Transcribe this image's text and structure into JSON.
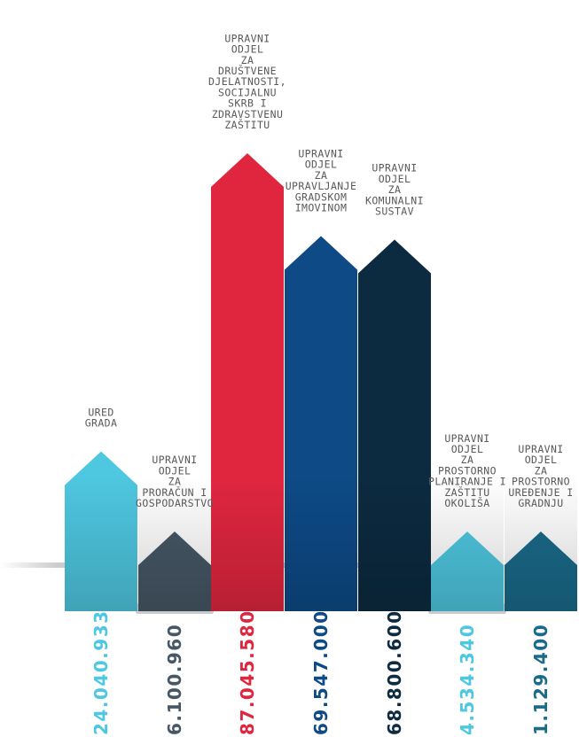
{
  "chart_data": {
    "type": "bar",
    "categories": [
      "UPRAVNI ODJEL ZA DRUŠTVENE DJELATNOSTI, SOCIJALNU SKRB I ZDRAVSTVENU ZAŠTITU",
      "UPRAVNI ODJEL ZA UPRAVLJANJE GRADSKOM IMOVINOM",
      "UPRAVNI ODJEL ZA KOMUNALNI SUSTAV",
      "URED GRADA",
      "UPRAVNI ODJEL ZA PRORAČUN I GOSPODARSTVO",
      "UPRAVNI ODJEL ZA PROSTORNO PLANIRANJE I ZAŠTITU OKOLIŠA",
      "UPRAVNI ODJEL ZA PROSTORNO UREĐENJE I GRADNJU"
    ],
    "category_lines": [
      [
        "UPRAVNI",
        "ODJEL",
        "ZA",
        "DRUŠTVENE",
        "DJELATNOSTI,",
        "SOCIJALNU",
        "SKRB I",
        "ZDRAVSTVENU",
        "ZAŠTITU"
      ],
      [
        "UPRAVNI",
        "ODJEL",
        "ZA",
        "UPRAVLJANJE",
        "GRADSKOM",
        "IMOVINOM"
      ],
      [
        "UPRAVNI",
        "ODJEL",
        "ZA",
        "KOMUNALNI",
        "SUSTAV"
      ],
      [
        "URED",
        "GRADA"
      ],
      [
        "UPRAVNI",
        "ODJEL",
        "ZA",
        "PRORAČUN I",
        "GOSPODARSTVO"
      ],
      [
        "UPRAVNI",
        "ODJEL",
        "ZA",
        "PROSTORNO",
        "PLANIRANJE I",
        "ZAŠTITU",
        "OKOLIŠA"
      ],
      [
        "UPRAVNI",
        "ODJEL",
        "ZA",
        "PROSTORNO",
        "UREĐENJE I",
        "GRADNJU"
      ]
    ],
    "values": [
      87045580,
      69547000,
      68800600,
      24040933,
      6100960,
      4534340,
      1129400
    ],
    "value_labels": [
      "87.045.580",
      "69.547.000",
      "68.800.600",
      "24.040.933",
      "6.100.960",
      "4.534.340",
      "1.129.400"
    ],
    "display_order": [
      3,
      4,
      0,
      1,
      2,
      5,
      6
    ],
    "colors": [
      "#e0263f",
      "#0d4a86",
      "#0c2a40",
      "#4ec7e0",
      "#465765",
      "#4ec7e0",
      "#1a6a8a"
    ],
    "label_colors": [
      "#e0263f",
      "#0d4a86",
      "#0c2a40",
      "#4ec7e0",
      "#465765",
      "#4ec7e0",
      "#1a6a8a"
    ]
  }
}
